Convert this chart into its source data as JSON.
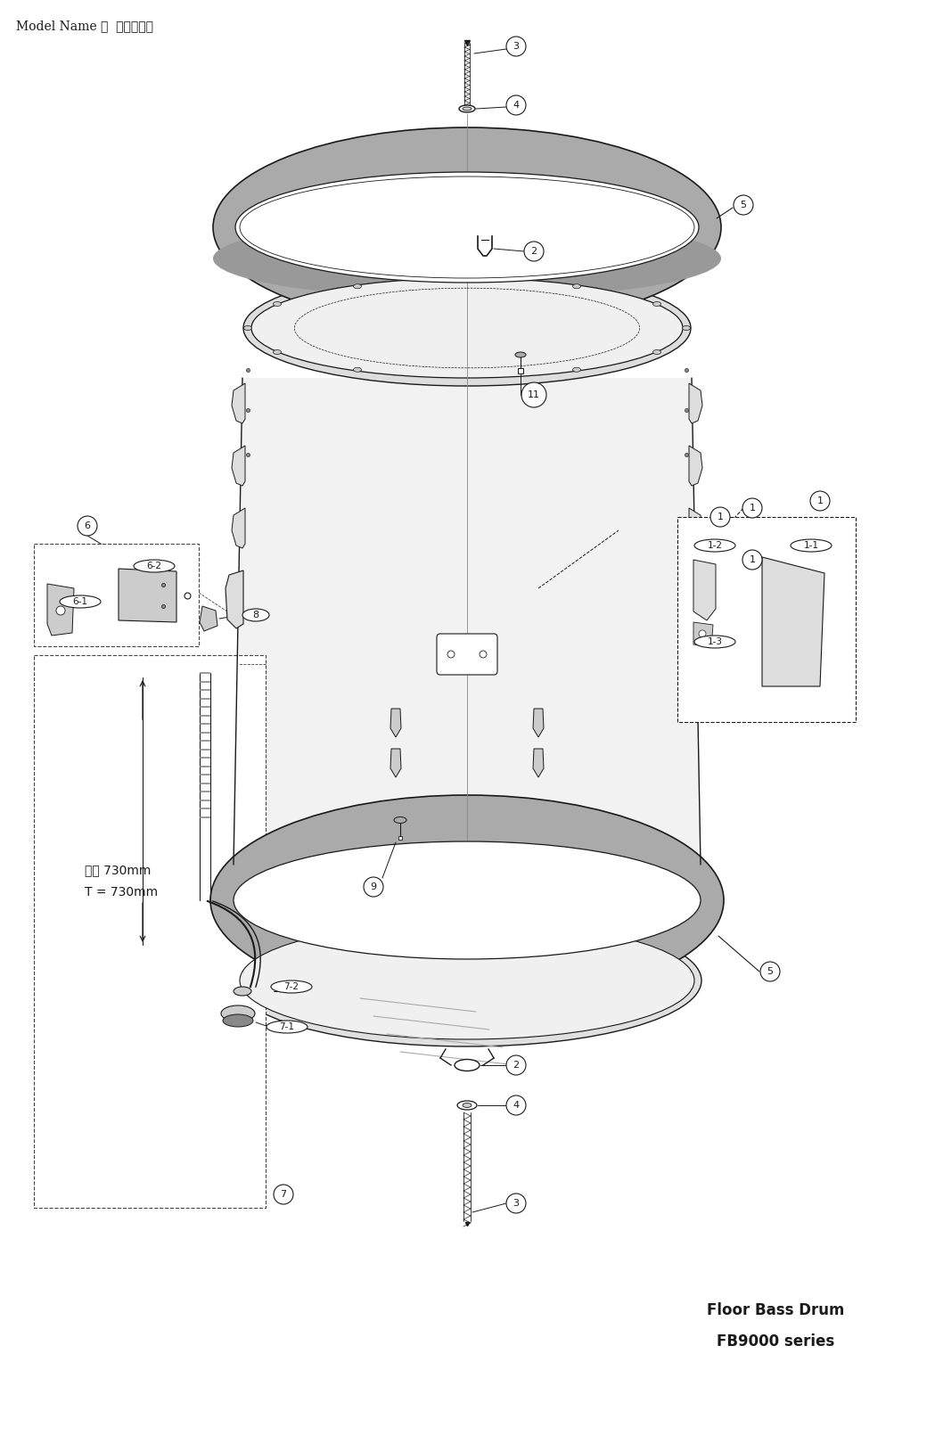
{
  "title_text": "Model Name ：  　　　　　",
  "bottom_right_line1": "Floor Bass Drum",
  "bottom_right_line2": "FB9000 series",
  "bg_color": "#ffffff",
  "line_color": "#1a1a1a",
  "dashed_color": "#444444",
  "ring_gray": "#888888",
  "ring_dark": "#555555",
  "shell_fill": "#f5f5f5",
  "head_fill": "#ebebeb"
}
